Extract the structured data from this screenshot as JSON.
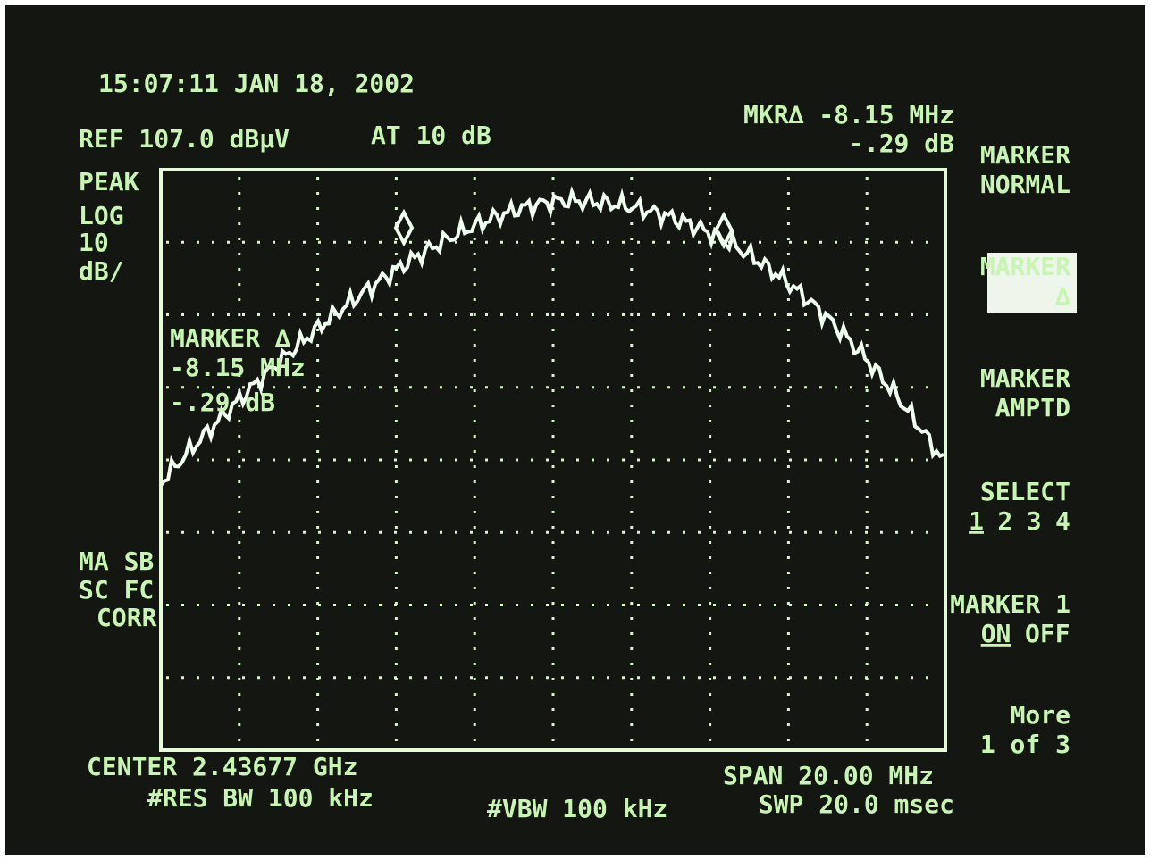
{
  "header": {
    "timestamp": "15:07:11 JAN 18, 2002",
    "reference": "REF 107.0 dBµV",
    "attenuation": "AT 10 dB",
    "marker_readout": [
      "MKR∆ -8.15 MHz",
      "-.29 dB"
    ]
  },
  "left_labels": [
    "PEAK",
    "LOG",
    "10",
    "dB/"
  ],
  "status_labels": [
    "MA SB",
    "SC FC",
    "CORR"
  ],
  "screen_annotation": [
    "MARKER ∆",
    "-8.15 MHz",
    "-.29 dB"
  ],
  "footer": {
    "center": "CENTER 2.43677 GHz",
    "res_bw": "#RES BW 100 kHz",
    "vbw": "#VBW 100 kHz",
    "span": "SPAN 20.00 MHz",
    "sweep": "SWP 20.0 msec"
  },
  "softkeys": [
    {
      "lines": [
        "MARKER",
        "NORMAL"
      ]
    },
    {
      "lines": [
        "MARKER",
        "∆"
      ]
    },
    {
      "lines": [
        "MARKER",
        "AMPTD"
      ]
    },
    {
      "lines": [
        "SELECT"
      ],
      "options": [
        "1",
        "2",
        "3",
        "4"
      ]
    },
    {
      "lines": [
        "MARKER 1"
      ],
      "options": [
        "ON",
        "OFF"
      ]
    },
    {
      "lines": [
        "More",
        "1 of 3"
      ]
    }
  ]
}
